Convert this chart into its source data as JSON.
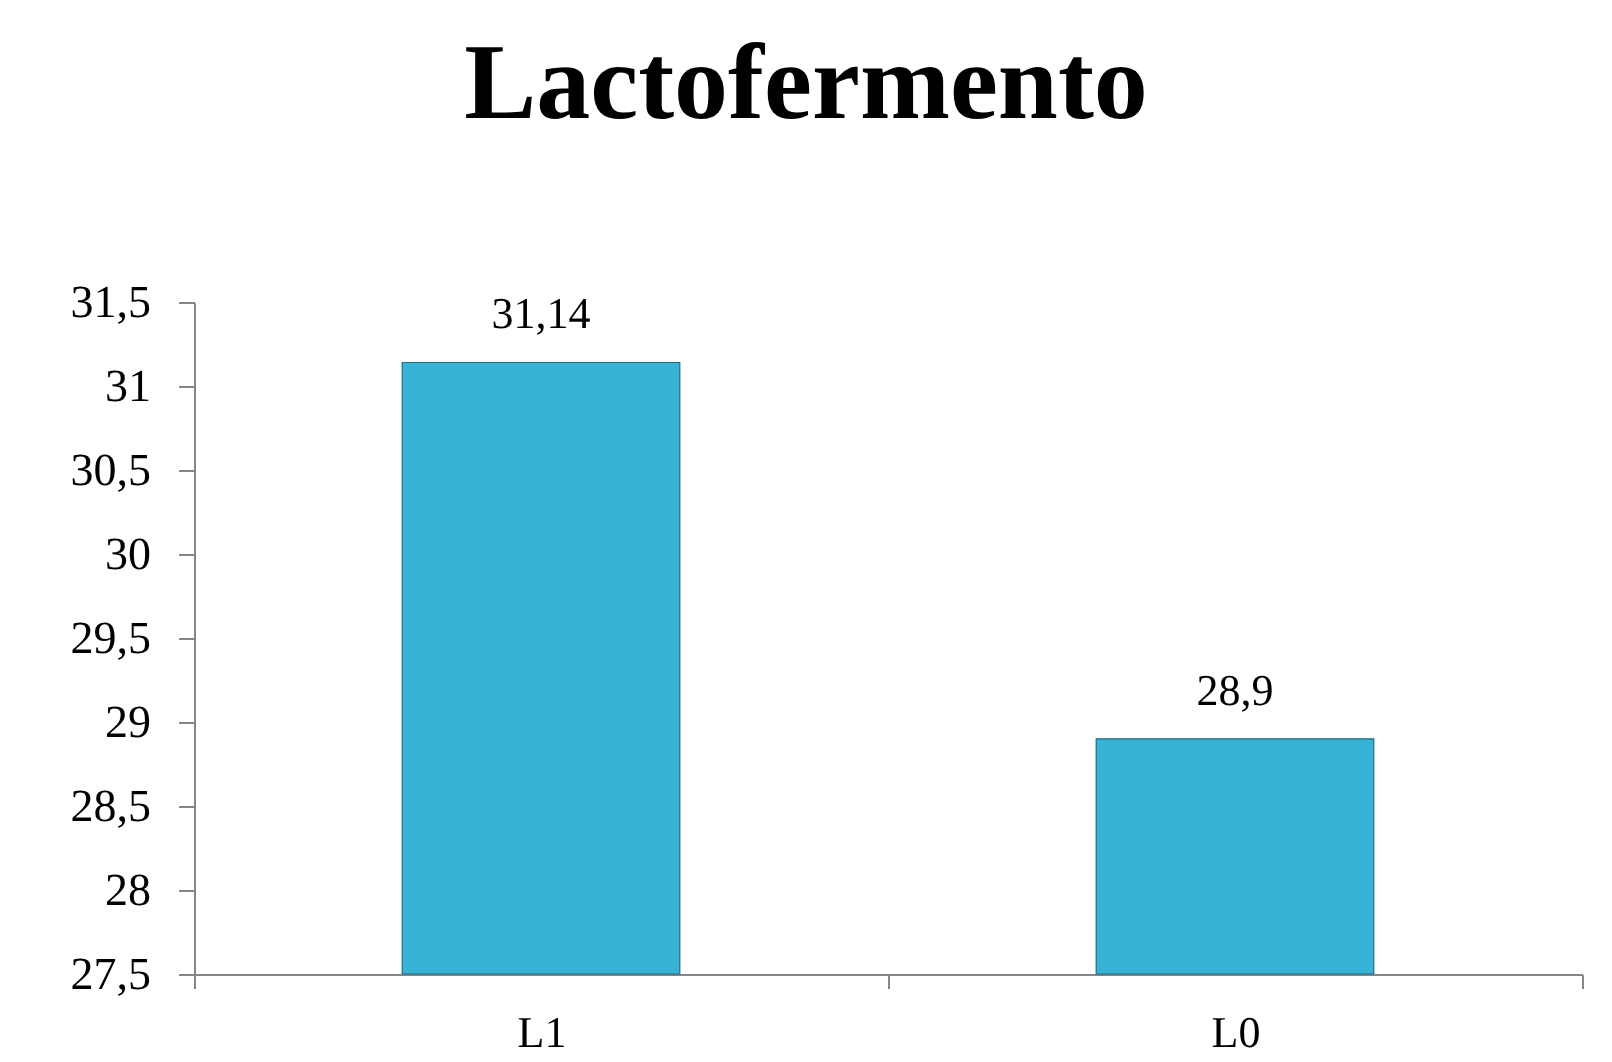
{
  "chart_data": {
    "type": "bar",
    "title": "Lactofermento",
    "categories": [
      "L1",
      "L0"
    ],
    "values": [
      31.14,
      28.9
    ],
    "value_labels": [
      "31,14",
      "28,9"
    ],
    "color": "#38b3d6",
    "ylim": [
      27.5,
      31.5
    ],
    "yticks": [
      {
        "value": 27.5,
        "label": "27,5"
      },
      28,
      {
        "value": 28.5,
        "label": "28,5"
      },
      29,
      {
        "value": 29.5,
        "label": "29,5"
      },
      30,
      {
        "value": 30.5,
        "label": "30,5"
      },
      31,
      {
        "value": 31.5,
        "label": "31,5"
      }
    ]
  }
}
